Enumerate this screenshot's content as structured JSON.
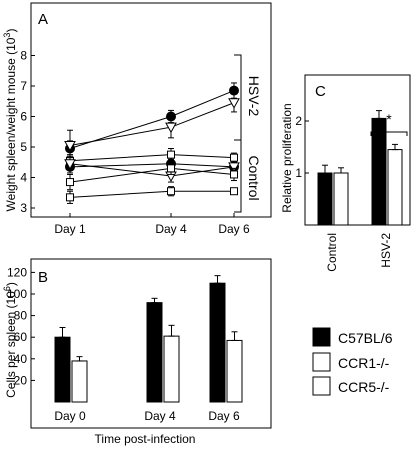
{
  "chart_data": [
    {
      "panel": "A",
      "type": "line",
      "ylabel": "Weight spleen/weight mouse (10",
      "ylabel_exp": "3",
      "ylabel_close": ")",
      "x": [
        "Day 1",
        "Day 4",
        "Day 6"
      ],
      "ylim": [
        2.8,
        8.2
      ],
      "yticks": [
        "3",
        "4",
        "5",
        "6",
        "7",
        "8"
      ],
      "group_labels": [
        "HSV-2",
        "Control"
      ],
      "series": [
        {
          "group": "HSV-2",
          "marker": "filled-circle",
          "values": [
            4.95,
            6.0,
            6.85
          ],
          "errors": [
            0.25,
            0.2,
            0.25
          ]
        },
        {
          "group": "HSV-2",
          "marker": "open-triangle",
          "values": [
            5.05,
            5.65,
            6.45
          ],
          "errors": [
            0.5,
            0.35,
            0.3
          ]
        },
        {
          "group": "Control",
          "marker": "filled-circle",
          "values": [
            4.35,
            4.45,
            4.35
          ],
          "errors": [
            0.2,
            0.15,
            0.15
          ]
        },
        {
          "group": "Control",
          "marker": "open-square",
          "values": [
            4.55,
            4.75,
            4.65
          ],
          "errors": [
            0.2,
            0.2,
            0.15
          ]
        },
        {
          "group": "Control",
          "marker": "open-triangle",
          "values": [
            4.45,
            4.05,
            4.35
          ],
          "errors": [
            0.2,
            0.2,
            0.15
          ]
        },
        {
          "group": "Control",
          "marker": "open-square",
          "values": [
            3.85,
            4.3,
            4.1
          ],
          "errors": [
            0.25,
            0.2,
            0.2
          ]
        },
        {
          "group": "Control",
          "marker": "open-square",
          "values": [
            3.35,
            3.55,
            3.55
          ],
          "errors": [
            0.2,
            0.15,
            0.1
          ]
        }
      ]
    },
    {
      "panel": "B",
      "type": "bar",
      "ylabel": "Cells per spleen (10",
      "ylabel_exp": "6",
      "ylabel_close": ")",
      "xlabel": "Time post-infection",
      "categories": [
        "Day  0",
        "Day 4",
        "Day 6"
      ],
      "ylim": [
        0,
        130
      ],
      "yticks": [
        "20",
        "40",
        "60",
        "80",
        "100",
        "120"
      ],
      "series": [
        {
          "name": "C57BL/6",
          "color": "#000000",
          "values": [
            60,
            92,
            110
          ],
          "errors": [
            9,
            4,
            7
          ]
        },
        {
          "name": "CCR1-/-",
          "color": "#ffffff",
          "values": [
            38,
            61,
            57
          ],
          "errors": [
            4,
            10,
            8
          ]
        }
      ]
    },
    {
      "panel": "C",
      "type": "bar",
      "ylabel": "Relative proliferation",
      "categories": [
        "Control",
        "HSV-2"
      ],
      "ylim": [
        0,
        2.6
      ],
      "yticks": [
        "1",
        "2"
      ],
      "significance": "*",
      "series": [
        {
          "color": "#000000",
          "values": [
            1.0,
            2.05
          ],
          "errors": [
            0.15,
            0.15
          ]
        },
        {
          "color": "#ffffff",
          "values": [
            1.0,
            1.45
          ],
          "errors": [
            0.1,
            0.1
          ]
        }
      ]
    }
  ],
  "legend": [
    {
      "label": "C57BL/6",
      "color": "#000000"
    },
    {
      "label": "CCR1-/-",
      "color": "#ffffff"
    },
    {
      "label": "CCR5-/-",
      "color": "#ffffff"
    }
  ]
}
